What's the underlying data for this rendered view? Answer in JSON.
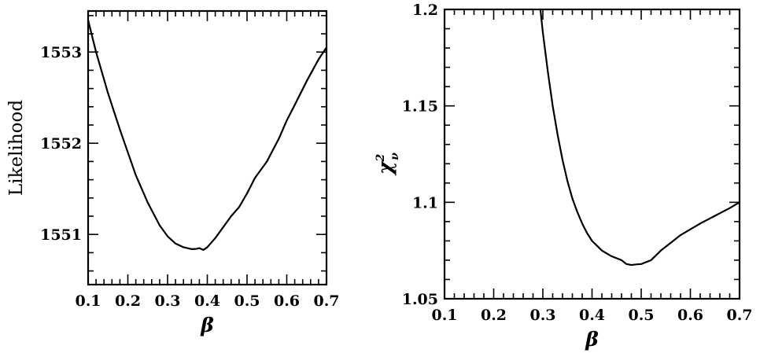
{
  "chart_data": [
    {
      "type": "line",
      "xlabel": "β",
      "ylabel": "Likelihood",
      "xlim": [
        0.1,
        0.7
      ],
      "ylim": [
        1550.45,
        1553.45
      ],
      "x_ticks": [
        0.1,
        0.2,
        0.3,
        0.4,
        0.5,
        0.6,
        0.7
      ],
      "x_tick_labels": [
        "0.1",
        "0.2",
        "0.3",
        "0.4",
        "0.5",
        "0.6",
        "0.7"
      ],
      "y_ticks": [
        1551,
        1552,
        1553
      ],
      "y_tick_labels": [
        "1551",
        "1552",
        "1553"
      ],
      "grid": false,
      "series": [
        {
          "x": [
            0.1,
            0.12,
            0.15,
            0.18,
            0.2,
            0.22,
            0.25,
            0.28,
            0.3,
            0.32,
            0.34,
            0.36,
            0.37,
            0.38,
            0.39,
            0.4,
            0.42,
            0.44,
            0.46,
            0.48,
            0.5,
            0.52,
            0.55,
            0.58,
            0.6,
            0.62,
            0.65,
            0.68,
            0.7
          ],
          "y": [
            1553.35,
            1553.0,
            1552.55,
            1552.15,
            1551.9,
            1551.65,
            1551.35,
            1551.1,
            1550.98,
            1550.9,
            1550.86,
            1550.84,
            1550.84,
            1550.85,
            1550.83,
            1550.86,
            1550.96,
            1551.08,
            1551.2,
            1551.3,
            1551.45,
            1551.62,
            1551.8,
            1552.05,
            1552.25,
            1552.42,
            1552.68,
            1552.92,
            1553.05
          ]
        }
      ]
    },
    {
      "type": "line",
      "xlabel": "β",
      "ylabel": "χ",
      "ylabel_superscript": "2",
      "ylabel_subscript": "ν",
      "xlim": [
        0.1,
        0.7
      ],
      "ylim": [
        1.05,
        1.2
      ],
      "x_ticks": [
        0.1,
        0.2,
        0.3,
        0.4,
        0.5,
        0.6,
        0.7
      ],
      "x_tick_labels": [
        "0.1",
        "0.2",
        "0.3",
        "0.4",
        "0.5",
        "0.6",
        "0.7"
      ],
      "y_ticks": [
        1.05,
        1.1,
        1.15,
        1.2
      ],
      "y_tick_labels": [
        "1.05",
        "1.1",
        "1.15",
        "1.2"
      ],
      "grid": false,
      "series": [
        {
          "x": [
            0.295,
            0.3,
            0.31,
            0.32,
            0.33,
            0.34,
            0.35,
            0.36,
            0.37,
            0.38,
            0.39,
            0.4,
            0.42,
            0.44,
            0.46,
            0.47,
            0.48,
            0.49,
            0.5,
            0.52,
            0.54,
            0.56,
            0.58,
            0.6,
            0.62,
            0.65,
            0.68,
            0.7
          ],
          "y": [
            1.2,
            1.188,
            1.168,
            1.15,
            1.135,
            1.122,
            1.111,
            1.102,
            1.095,
            1.089,
            1.084,
            1.08,
            1.075,
            1.072,
            1.07,
            1.068,
            1.0675,
            1.0678,
            1.068,
            1.07,
            1.075,
            1.079,
            1.083,
            1.086,
            1.089,
            1.093,
            1.097,
            1.1
          ]
        }
      ]
    }
  ]
}
